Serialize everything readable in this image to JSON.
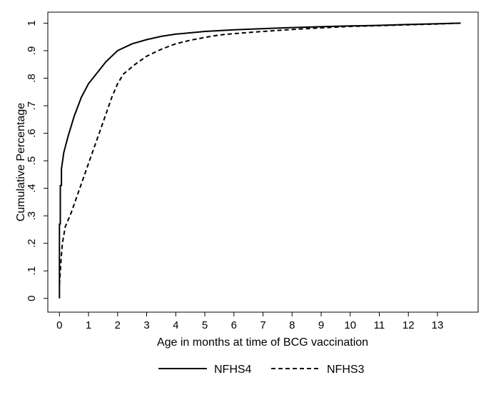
{
  "chart_data": {
    "type": "line",
    "title": "",
    "xlabel": "Age in months at time of BCG vaccination",
    "ylabel": "Cumulative Percentage",
    "xlim": [
      -0.4,
      14.4
    ],
    "ylim": [
      -0.05,
      1.04
    ],
    "xticks": [
      0,
      1,
      2,
      3,
      4,
      5,
      6,
      7,
      8,
      9,
      10,
      11,
      12,
      13
    ],
    "yticks": [
      0,
      0.1,
      0.2,
      0.3,
      0.4,
      0.5,
      0.6,
      0.7,
      0.8,
      0.9,
      1
    ],
    "ytick_labels": [
      "0",
      ".1",
      ".2",
      ".3",
      ".4",
      ".5",
      ".6",
      ".7",
      ".8",
      ".9",
      "1"
    ],
    "grid": false,
    "legend_position": "bottom",
    "series": [
      {
        "name": "NFHS4",
        "style": "solid",
        "color": "#000000",
        "points": [
          [
            0,
            0
          ],
          [
            0,
            0.27
          ],
          [
            0.03,
            0.27
          ],
          [
            0.03,
            0.41
          ],
          [
            0.07,
            0.41
          ],
          [
            0.07,
            0.47
          ],
          [
            0.15,
            0.53
          ],
          [
            0.3,
            0.59
          ],
          [
            0.5,
            0.66
          ],
          [
            0.75,
            0.73
          ],
          [
            1.0,
            0.78
          ],
          [
            1.3,
            0.82
          ],
          [
            1.6,
            0.86
          ],
          [
            2.0,
            0.9
          ],
          [
            2.5,
            0.925
          ],
          [
            3.0,
            0.94
          ],
          [
            3.5,
            0.952
          ],
          [
            4.0,
            0.96
          ],
          [
            5.0,
            0.97
          ],
          [
            6.0,
            0.976
          ],
          [
            7.0,
            0.98
          ],
          [
            8.0,
            0.984
          ],
          [
            9.0,
            0.987
          ],
          [
            10.0,
            0.99
          ],
          [
            11.0,
            0.992
          ],
          [
            12.0,
            0.995
          ],
          [
            13.0,
            0.998
          ],
          [
            13.8,
            1.0
          ]
        ]
      },
      {
        "name": "NFHS3",
        "style": "dashed",
        "color": "#000000",
        "points": [
          [
            0,
            0.05
          ],
          [
            0.05,
            0.13
          ],
          [
            0.1,
            0.2
          ],
          [
            0.2,
            0.26
          ],
          [
            0.4,
            0.31
          ],
          [
            0.6,
            0.37
          ],
          [
            0.8,
            0.43
          ],
          [
            1.0,
            0.49
          ],
          [
            1.3,
            0.58
          ],
          [
            1.6,
            0.67
          ],
          [
            1.8,
            0.73
          ],
          [
            2.0,
            0.78
          ],
          [
            2.2,
            0.815
          ],
          [
            2.6,
            0.85
          ],
          [
            3.0,
            0.88
          ],
          [
            3.5,
            0.905
          ],
          [
            4.0,
            0.925
          ],
          [
            4.5,
            0.938
          ],
          [
            5.0,
            0.948
          ],
          [
            5.5,
            0.957
          ],
          [
            6.0,
            0.962
          ],
          [
            7.0,
            0.97
          ],
          [
            8.0,
            0.977
          ],
          [
            9.0,
            0.983
          ],
          [
            10.0,
            0.988
          ],
          [
            11.0,
            0.991
          ],
          [
            12.0,
            0.994
          ],
          [
            13.0,
            0.997
          ],
          [
            13.8,
            1.0
          ]
        ]
      }
    ]
  }
}
